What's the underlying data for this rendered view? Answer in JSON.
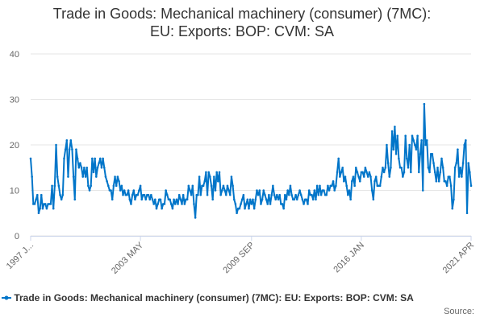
{
  "colors": {
    "series": "#0075c9",
    "grid": "#e6e6e6",
    "axis": "#ccd6eb"
  },
  "chart_data": {
    "type": "line",
    "title": "Trade in Goods: Mechanical machinery (consumer) (7MC): EU: Exports: BOP: CVM: SA",
    "title_lines": [
      "Trade in Goods: Mechanical machinery (consumer) (7MC):",
      "EU: Exports: BOP: CVM: SA"
    ],
    "xlabel": "",
    "ylabel": "",
    "ylim": [
      0,
      40
    ],
    "y_ticks": [
      0,
      10,
      20,
      30,
      40
    ],
    "x_tick_labels": [
      "1997 J...",
      "2003 MAY",
      "2009 SEP",
      "2016 JAN",
      "2021 APR"
    ],
    "x_start": "1997 JAN",
    "x_end": "2021 APR",
    "grid": true,
    "legend_position": "bottom",
    "credits": "Source:",
    "series": [
      {
        "name": "Trade in Goods: Mechanical machinery (consumer) (7MC): EU: Exports: BOP: CVM: SA",
        "frequency": "monthly",
        "values": [
          17,
          13,
          7,
          7,
          8,
          9,
          5,
          6,
          9,
          6,
          7,
          7,
          6,
          7,
          7,
          7,
          11,
          6,
          11,
          20,
          13,
          11,
          9,
          8,
          9,
          17,
          19,
          21,
          13,
          19,
          21,
          19,
          13,
          8,
          19,
          17,
          15,
          16,
          15,
          13,
          15,
          13,
          15,
          11,
          10,
          11,
          17,
          14,
          17,
          13,
          15,
          16,
          17,
          15,
          17,
          15,
          13,
          12,
          11,
          10,
          10,
          8,
          11,
          13,
          11,
          13,
          12,
          10,
          11,
          9,
          10,
          9,
          9,
          10,
          8,
          7,
          9,
          10,
          8,
          9,
          9,
          10,
          11,
          8,
          9,
          9,
          8,
          9,
          9,
          8,
          9,
          8,
          7,
          8,
          6,
          7,
          8,
          8,
          6,
          7,
          7,
          10,
          9,
          8,
          8,
          7,
          6,
          8,
          7,
          8,
          7,
          9,
          8,
          7,
          9,
          7,
          8,
          8,
          11,
          10,
          9,
          11,
          7,
          4,
          9,
          9,
          13,
          9,
          11,
          11,
          12,
          14,
          9,
          14,
          13,
          11,
          8,
          13,
          10,
          14,
          12,
          14,
          9,
          10,
          11,
          10,
          9,
          11,
          10,
          9,
          13,
          11,
          8,
          7,
          5,
          6,
          6,
          7,
          8,
          9,
          6,
          7,
          8,
          6,
          8,
          7,
          8,
          6,
          8,
          10,
          9,
          10,
          7,
          8,
          10,
          9,
          8,
          7,
          9,
          7,
          9,
          11,
          9,
          8,
          9,
          8,
          9,
          7,
          7,
          6,
          9,
          8,
          10,
          9,
          11,
          9,
          8,
          8,
          9,
          8,
          9,
          10,
          9,
          8,
          7,
          8,
          8,
          7,
          10,
          9,
          9,
          8,
          10,
          8,
          11,
          9,
          11,
          9,
          10,
          10,
          9,
          9,
          11,
          10,
          11,
          11,
          12,
          10,
          11,
          14,
          17,
          13,
          14,
          15,
          12,
          13,
          11,
          9,
          10,
          8,
          12,
          13,
          11,
          15,
          14,
          13,
          12,
          14,
          14,
          13,
          15,
          14,
          13,
          14,
          13,
          10,
          8,
          12,
          13,
          11,
          11,
          11,
          13,
          15,
          14,
          15,
          20,
          16,
          13,
          15,
          23,
          19,
          24,
          18,
          22,
          17,
          15,
          15,
          13,
          14,
          22,
          17,
          15,
          20,
          14,
          22,
          21,
          20,
          19,
          22,
          14,
          18,
          21,
          10,
          29,
          20,
          21,
          15,
          14,
          18,
          18,
          16,
          14,
          12,
          15,
          12,
          14,
          17,
          15,
          12,
          12,
          11,
          13,
          13,
          11,
          6,
          8,
          15,
          16,
          19,
          13,
          15,
          13,
          16,
          20,
          21,
          5,
          16,
          14,
          11
        ]
      }
    ]
  }
}
